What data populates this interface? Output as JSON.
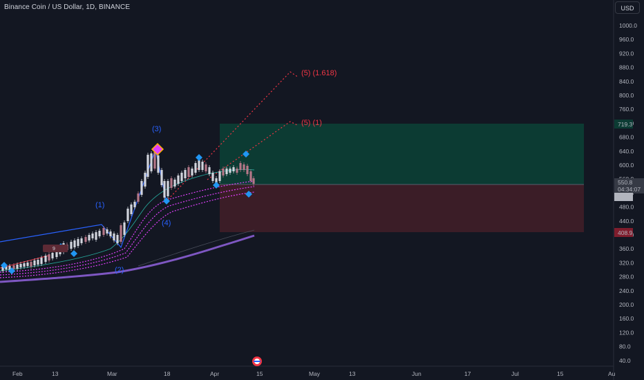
{
  "header": {
    "title": "Binance Coin / US Dollar, 1D, BINANCE",
    "currency_button": "USD"
  },
  "colors": {
    "background": "#131722",
    "up_candle": "#d1d4dc",
    "down_candle": "#b57788",
    "profit_zone": "#0c3b33",
    "loss_zone": "#3b1d27",
    "wave_label": "#2962ff",
    "projection": "#f23645",
    "ma_long": "#7e57c2",
    "ma_dots": "#e040fb"
  },
  "price_axis": {
    "ticks": [
      "1000.0",
      "960.0",
      "920.0",
      "880.0",
      "840.0",
      "800.0",
      "760.0",
      "720.0",
      "680.0",
      "640.0",
      "600.0",
      "560.0",
      "520.0",
      "480.0",
      "440.0",
      "400.0",
      "360.0",
      "320.0",
      "280.0",
      "240.0",
      "200.0",
      "160.0",
      "120.0",
      "80.0",
      "40.0"
    ],
    "labels": {
      "target": "719.3",
      "current": "550.8",
      "countdown": "04:34:07",
      "entry": "545.0",
      "stop": "408.9"
    }
  },
  "time_axis": {
    "ticks": [
      "Feb",
      "13",
      "Mar",
      "18",
      "Apr",
      "15",
      "May",
      "13",
      "Jun",
      "17",
      "Jul",
      "15",
      "Au"
    ]
  },
  "annotations": {
    "wave_1": "(1)",
    "wave_2": "(2)",
    "wave_3": "(3)",
    "wave_4": "(4)",
    "target_1618": "(5) (1.618)",
    "target_1": "(5) (1)",
    "badge": "9"
  }
}
